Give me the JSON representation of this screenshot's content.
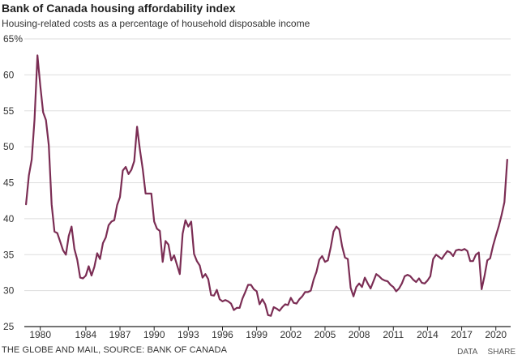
{
  "header": {
    "title": "Bank of Canada housing affordability index",
    "subtitle": "Housing-related costs as a percentage of household disposable income"
  },
  "footer": {
    "source": "THE GLOBE AND MAIL, SOURCE: BANK OF CANADA",
    "data_link": "DATA",
    "share_link": "SHARE"
  },
  "colors": {
    "line": "#7b2d54",
    "grid": "#dddddd",
    "axis": "#222222"
  },
  "chart_data": {
    "type": "line",
    "title": "Bank of Canada housing affordability index",
    "subtitle": "Housing-related costs as a percentage of household disposable income",
    "xlabel": "",
    "ylabel": "",
    "ylim": [
      25,
      65
    ],
    "xlim": [
      1978.6,
      2021.3
    ],
    "y_ticks": [
      25,
      30,
      35,
      40,
      45,
      50,
      55,
      60,
      65
    ],
    "y_tick_labels": [
      "25",
      "30",
      "35",
      "40",
      "45",
      "50",
      "55",
      "60",
      "65%"
    ],
    "x_ticks": [
      1980,
      1984,
      1987,
      1990,
      1993,
      1996,
      1999,
      2002,
      2005,
      2008,
      2011,
      2014,
      2017,
      2020
    ],
    "x_tick_labels": [
      "1980",
      "1984",
      "1987",
      "1990",
      "1993",
      "1996",
      "1999",
      "2002",
      "2005",
      "2008",
      "2011",
      "2014",
      "2017",
      "2020"
    ],
    "grid": true,
    "series": [
      {
        "values": [
          [
            1978.75,
            42.0
          ],
          [
            1979.0,
            46.0
          ],
          [
            1979.25,
            48.2
          ],
          [
            1979.5,
            53.8
          ],
          [
            1979.75,
            62.7
          ],
          [
            1980.0,
            58.5
          ],
          [
            1980.25,
            54.8
          ],
          [
            1980.5,
            53.7
          ],
          [
            1980.75,
            50.2
          ],
          [
            1981.0,
            42.0
          ],
          [
            1981.25,
            38.2
          ],
          [
            1981.5,
            38.0
          ],
          [
            1981.75,
            36.8
          ],
          [
            1982.0,
            35.6
          ],
          [
            1982.25,
            35.0
          ],
          [
            1982.5,
            37.6
          ],
          [
            1982.75,
            38.9
          ],
          [
            1983.0,
            35.8
          ],
          [
            1983.25,
            34.3
          ],
          [
            1983.5,
            31.8
          ],
          [
            1983.75,
            31.7
          ],
          [
            1984.0,
            32.1
          ],
          [
            1984.25,
            33.4
          ],
          [
            1984.5,
            32.1
          ],
          [
            1984.75,
            33.3
          ],
          [
            1985.0,
            35.2
          ],
          [
            1985.25,
            34.4
          ],
          [
            1985.5,
            36.6
          ],
          [
            1985.75,
            37.4
          ],
          [
            1986.0,
            39.1
          ],
          [
            1986.25,
            39.6
          ],
          [
            1986.5,
            39.8
          ],
          [
            1986.75,
            41.9
          ],
          [
            1987.0,
            43.0
          ],
          [
            1987.25,
            46.7
          ],
          [
            1987.5,
            47.2
          ],
          [
            1987.75,
            46.2
          ],
          [
            1988.0,
            46.8
          ],
          [
            1988.25,
            48.0
          ],
          [
            1988.5,
            52.8
          ],
          [
            1988.75,
            49.6
          ],
          [
            1989.0,
            46.9
          ],
          [
            1989.25,
            43.5
          ],
          [
            1989.5,
            43.5
          ],
          [
            1989.75,
            43.5
          ],
          [
            1990.0,
            39.6
          ],
          [
            1990.25,
            38.6
          ],
          [
            1990.5,
            38.3
          ],
          [
            1990.75,
            34.0
          ],
          [
            1991.0,
            36.9
          ],
          [
            1991.25,
            36.4
          ],
          [
            1991.5,
            34.2
          ],
          [
            1991.75,
            34.9
          ],
          [
            1992.0,
            33.6
          ],
          [
            1992.25,
            32.3
          ],
          [
            1992.5,
            37.9
          ],
          [
            1992.75,
            39.8
          ],
          [
            1993.0,
            38.9
          ],
          [
            1993.25,
            39.6
          ],
          [
            1993.5,
            35.1
          ],
          [
            1993.75,
            34.1
          ],
          [
            1994.0,
            33.5
          ],
          [
            1994.25,
            31.8
          ],
          [
            1994.5,
            32.3
          ],
          [
            1994.75,
            31.6
          ],
          [
            1995.0,
            29.4
          ],
          [
            1995.25,
            29.3
          ],
          [
            1995.5,
            30.1
          ],
          [
            1995.75,
            28.8
          ],
          [
            1996.0,
            28.5
          ],
          [
            1996.25,
            28.7
          ],
          [
            1996.5,
            28.5
          ],
          [
            1996.75,
            28.2
          ],
          [
            1997.0,
            27.3
          ],
          [
            1997.25,
            27.6
          ],
          [
            1997.5,
            27.6
          ],
          [
            1997.75,
            28.9
          ],
          [
            1998.0,
            29.8
          ],
          [
            1998.25,
            30.8
          ],
          [
            1998.5,
            30.8
          ],
          [
            1998.75,
            30.2
          ],
          [
            1999.0,
            29.9
          ],
          [
            1999.25,
            28.1
          ],
          [
            1999.5,
            28.8
          ],
          [
            1999.75,
            28.1
          ],
          [
            2000.0,
            26.6
          ],
          [
            2000.25,
            26.5
          ],
          [
            2000.5,
            27.7
          ],
          [
            2000.75,
            27.5
          ],
          [
            2001.0,
            27.2
          ],
          [
            2001.25,
            27.7
          ],
          [
            2001.5,
            28.1
          ],
          [
            2001.75,
            28.0
          ],
          [
            2002.0,
            29.0
          ],
          [
            2002.25,
            28.3
          ],
          [
            2002.5,
            28.2
          ],
          [
            2002.75,
            28.8
          ],
          [
            2003.0,
            29.2
          ],
          [
            2003.25,
            29.8
          ],
          [
            2003.5,
            29.8
          ],
          [
            2003.75,
            30.0
          ],
          [
            2004.0,
            31.5
          ],
          [
            2004.25,
            32.6
          ],
          [
            2004.5,
            34.3
          ],
          [
            2004.75,
            34.8
          ],
          [
            2005.0,
            34.0
          ],
          [
            2005.25,
            34.2
          ],
          [
            2005.5,
            36.0
          ],
          [
            2005.75,
            38.2
          ],
          [
            2006.0,
            38.9
          ],
          [
            2006.25,
            38.5
          ],
          [
            2006.5,
            36.2
          ],
          [
            2006.75,
            34.6
          ],
          [
            2007.0,
            34.4
          ],
          [
            2007.25,
            30.4
          ],
          [
            2007.5,
            29.2
          ],
          [
            2007.75,
            30.5
          ],
          [
            2008.0,
            31.0
          ],
          [
            2008.25,
            30.5
          ],
          [
            2008.5,
            31.8
          ],
          [
            2008.75,
            31.0
          ],
          [
            2009.0,
            30.3
          ],
          [
            2009.25,
            31.3
          ],
          [
            2009.5,
            32.3
          ],
          [
            2009.75,
            32.0
          ],
          [
            2010.0,
            31.6
          ],
          [
            2010.25,
            31.4
          ],
          [
            2010.5,
            31.3
          ],
          [
            2010.75,
            30.8
          ],
          [
            2011.0,
            30.5
          ],
          [
            2011.25,
            29.9
          ],
          [
            2011.5,
            30.3
          ],
          [
            2011.75,
            31.0
          ],
          [
            2012.0,
            32.0
          ],
          [
            2012.25,
            32.2
          ],
          [
            2012.5,
            32.0
          ],
          [
            2012.75,
            31.5
          ],
          [
            2013.0,
            31.2
          ],
          [
            2013.25,
            31.7
          ],
          [
            2013.5,
            31.1
          ],
          [
            2013.75,
            31.0
          ],
          [
            2014.0,
            31.4
          ],
          [
            2014.25,
            32.0
          ],
          [
            2014.5,
            34.4
          ],
          [
            2014.75,
            35.0
          ],
          [
            2015.0,
            34.7
          ],
          [
            2015.25,
            34.4
          ],
          [
            2015.5,
            35.0
          ],
          [
            2015.75,
            35.5
          ],
          [
            2016.0,
            35.3
          ],
          [
            2016.25,
            34.8
          ],
          [
            2016.5,
            35.6
          ],
          [
            2016.75,
            35.7
          ],
          [
            2017.0,
            35.6
          ],
          [
            2017.25,
            35.8
          ],
          [
            2017.5,
            35.5
          ],
          [
            2017.75,
            34.1
          ],
          [
            2018.0,
            34.1
          ],
          [
            2018.25,
            35.0
          ],
          [
            2018.5,
            35.3
          ],
          [
            2018.75,
            30.2
          ],
          [
            2019.0,
            32.0
          ],
          [
            2019.25,
            34.2
          ],
          [
            2019.5,
            34.5
          ],
          [
            2019.75,
            36.2
          ],
          [
            2020.0,
            37.6
          ],
          [
            2020.25,
            38.9
          ],
          [
            2020.5,
            40.5
          ],
          [
            2020.75,
            42.3
          ],
          [
            2021.0,
            48.2
          ]
        ]
      }
    ]
  }
}
